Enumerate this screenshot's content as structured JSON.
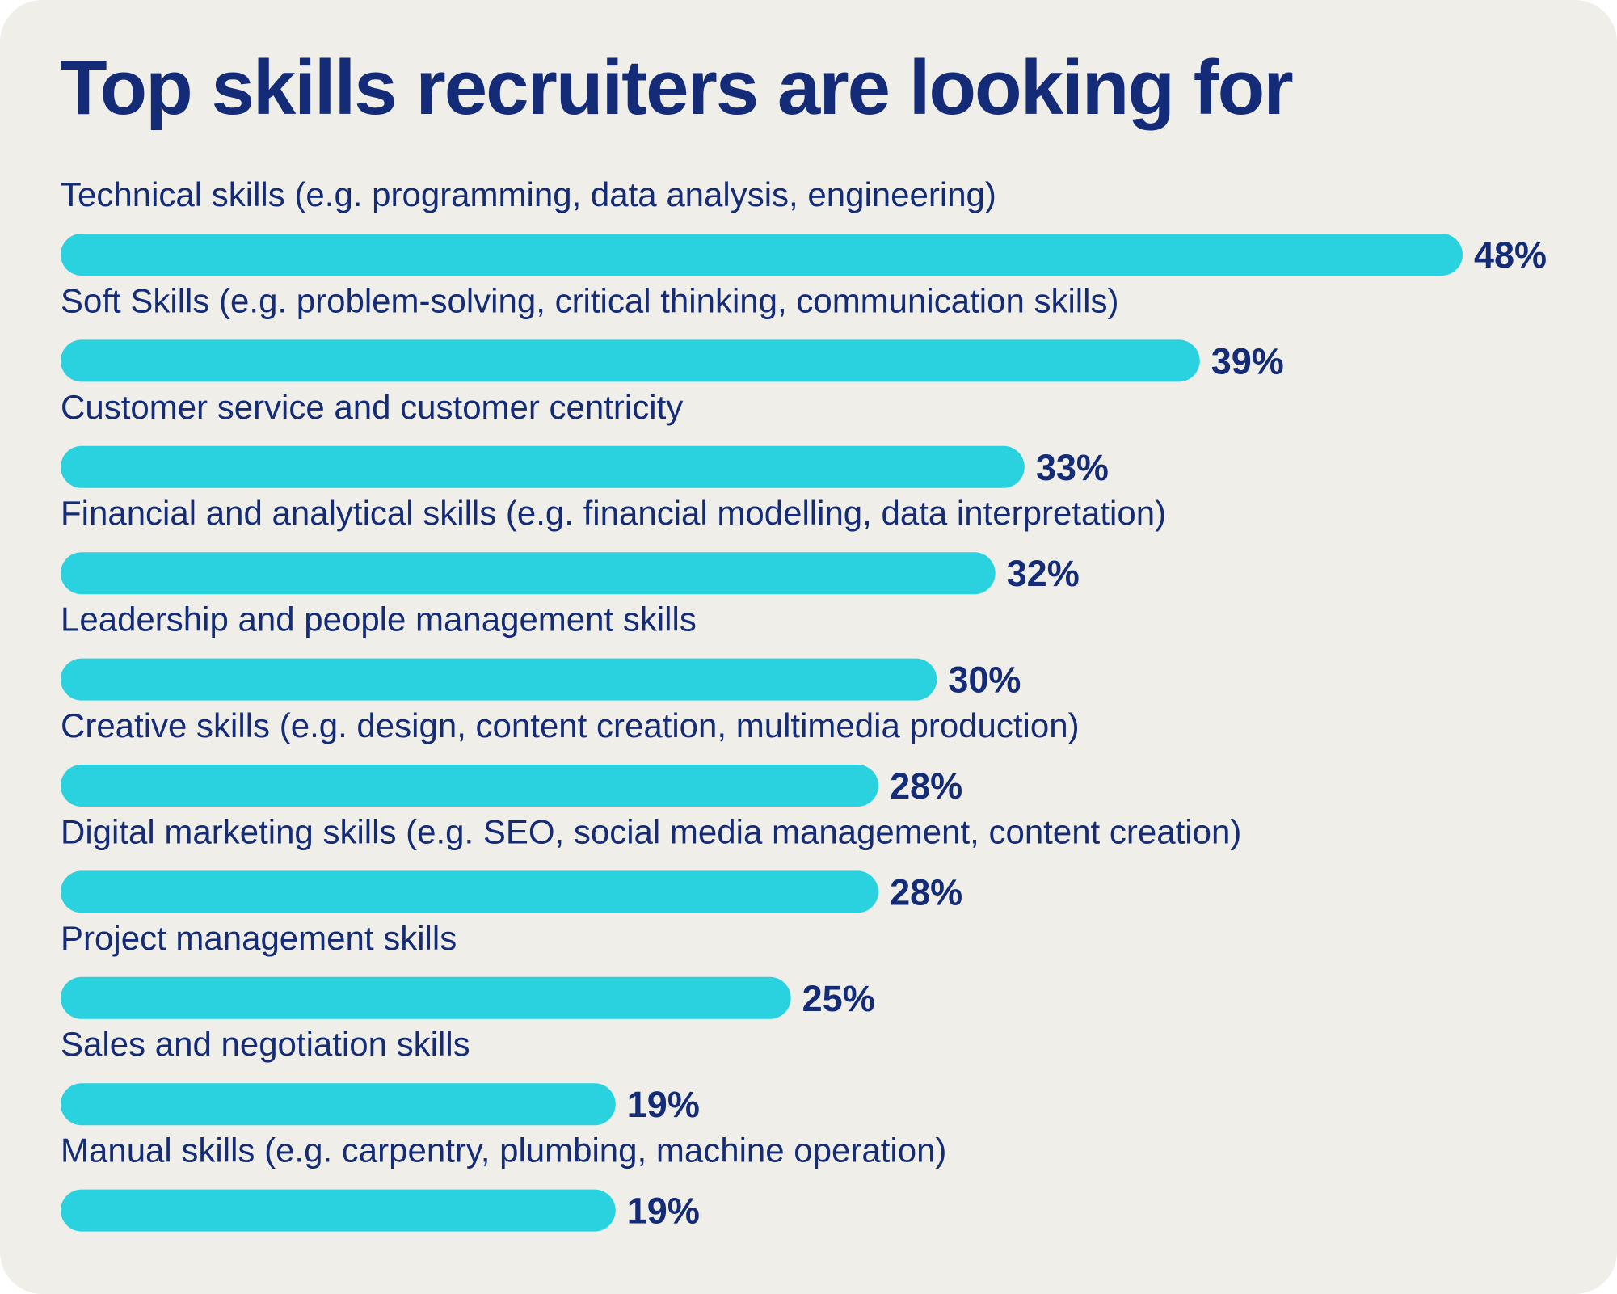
{
  "chart_data": {
    "type": "bar",
    "orientation": "horizontal",
    "title": "Top skills recruiters are looking for",
    "categories": [
      "Technical skills (e.g. programming, data analysis, engineering)",
      "Soft Skills (e.g. problem-solving, critical thinking, communication skills)",
      "Customer service and customer centricity",
      "Financial and analytical skills (e.g. financial modelling, data interpretation)",
      "Leadership and people management skills",
      "Creative skills (e.g. design, content creation, multimedia production)",
      "Digital marketing skills (e.g. SEO, social media management, content creation)",
      "Project management skills",
      "Sales and negotiation skills",
      "Manual skills (e.g. carpentry, plumbing, machine operation)"
    ],
    "values": [
      48,
      39,
      33,
      32,
      30,
      28,
      28,
      25,
      19,
      19
    ],
    "value_labels": [
      "48%",
      "39%",
      "33%",
      "32%",
      "30%",
      "28%",
      "28%",
      "25%",
      "19%",
      "19%"
    ],
    "unit": "%",
    "grid": false,
    "legend": false,
    "colors": {
      "bar": "#2ad2df",
      "text": "#142b78",
      "background": "#efeee9"
    }
  }
}
